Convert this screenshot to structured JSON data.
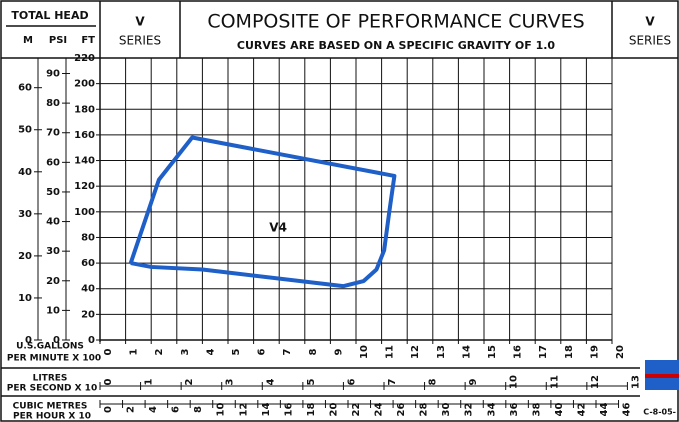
{
  "chart_data": {
    "type": "line",
    "title": "COMPOSITE OF PERFORMANCE CURVES",
    "subtitle": "CURVES ARE BASED ON A SPECIFIC GRAVITY OF 1.0",
    "head_title": "TOTAL HEAD",
    "left_header": [
      "V",
      "SERIES"
    ],
    "right_header": [
      "V",
      "SERIES"
    ],
    "drawing_number": "C-8-05-",
    "ylabel": "FT",
    "xlabel": [
      "U.S.GALLONS",
      "PER MINUTE X 100"
    ],
    "xlim": [
      0,
      20
    ],
    "xticks": [
      0,
      1,
      2,
      3,
      4,
      5,
      6,
      7,
      8,
      9,
      10,
      11,
      12,
      13,
      14,
      15,
      16,
      17,
      18,
      19,
      20
    ],
    "ylim": [
      0,
      220
    ],
    "yticks": [
      0,
      20,
      40,
      60,
      80,
      100,
      120,
      140,
      160,
      180,
      200,
      220
    ],
    "grid": true,
    "series": [
      {
        "name": "V4",
        "color": "#1f5fc8",
        "x": [
          1.2,
          2,
          4,
          9.5,
          10.3,
          10.8,
          11.1,
          11.3,
          11.5,
          3.6,
          2.3,
          1.2
        ],
        "values": [
          60,
          57,
          55,
          42,
          46,
          55,
          70,
          100,
          128,
          158,
          125,
          60
        ]
      }
    ],
    "head_axes": [
      {
        "label": "M",
        "lim": [
          0,
          67.06
        ],
        "ticks": [
          0,
          10,
          20,
          30,
          40,
          50,
          60
        ]
      },
      {
        "label": "PSI",
        "lim": [
          0,
          95.24
        ],
        "ticks": [
          0,
          10,
          20,
          30,
          40,
          50,
          60,
          70,
          80,
          90
        ]
      }
    ],
    "flow_axes": [
      {
        "label": [
          "LITRES",
          "PER SECOND X 10"
        ],
        "lim": [
          0,
          12.62
        ],
        "ticks": [
          0,
          1,
          2,
          3,
          4,
          5,
          6,
          7,
          8,
          9,
          10,
          11,
          12,
          13
        ]
      },
      {
        "label": [
          "CUBIC METRES",
          "PER HOUR X 10"
        ],
        "lim": [
          0,
          45.42
        ],
        "ticks": [
          0,
          2,
          4,
          6,
          8,
          10,
          12,
          14,
          16,
          18,
          20,
          22,
          24,
          26,
          28,
          30,
          32,
          34,
          36,
          38,
          40,
          42,
          44,
          46
        ]
      }
    ]
  }
}
